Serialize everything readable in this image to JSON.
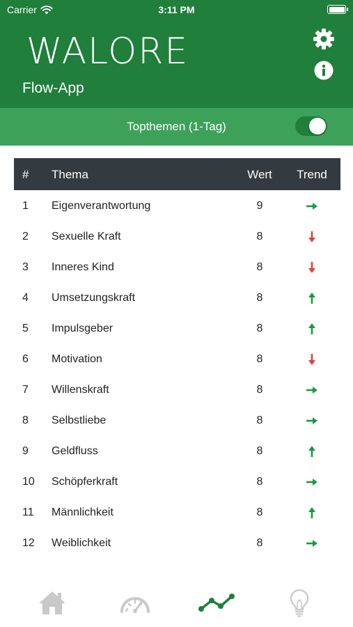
{
  "status_bar": {
    "carrier": "Carrier",
    "time": "3:11 PM"
  },
  "header": {
    "logo_text": "WALORE",
    "subtitle": "Flow-App"
  },
  "icons": {
    "settings": "gear-icon",
    "info": "info-icon"
  },
  "toggle": {
    "label": "Topthemen (1-Tag)",
    "on": true
  },
  "table": {
    "headers": {
      "number": "#",
      "theme": "Thema",
      "value": "Wert",
      "trend": "Trend"
    },
    "rows": [
      {
        "num": "1",
        "theme": "Eigenverantwortung",
        "value": "9",
        "trend": "right"
      },
      {
        "num": "2",
        "theme": "Sexuelle Kraft",
        "value": "8",
        "trend": "down"
      },
      {
        "num": "3",
        "theme": "Inneres Kind",
        "value": "8",
        "trend": "down"
      },
      {
        "num": "4",
        "theme": "Umsetzungskraft",
        "value": "8",
        "trend": "up"
      },
      {
        "num": "5",
        "theme": "Impulsgeber",
        "value": "8",
        "trend": "up"
      },
      {
        "num": "6",
        "theme": "Motivation",
        "value": "8",
        "trend": "down"
      },
      {
        "num": "7",
        "theme": "Willenskraft",
        "value": "8",
        "trend": "right"
      },
      {
        "num": "8",
        "theme": "Selbstliebe",
        "value": "8",
        "trend": "right"
      },
      {
        "num": "9",
        "theme": "Geldfluss",
        "value": "8",
        "trend": "up"
      },
      {
        "num": "10",
        "theme": "Schöpferkraft",
        "value": "8",
        "trend": "right"
      },
      {
        "num": "11",
        "theme": "Männlichkeit",
        "value": "8",
        "trend": "up"
      },
      {
        "num": "12",
        "theme": "Weiblichkeit",
        "value": "8",
        "trend": "right"
      }
    ]
  },
  "tabs": [
    {
      "icon": "home-icon",
      "active": false
    },
    {
      "icon": "gauge-icon",
      "active": false
    },
    {
      "icon": "trend-chart-icon",
      "active": true
    },
    {
      "icon": "lightbulb-icon",
      "active": false
    }
  ],
  "colors": {
    "header_green": "#1f7f3b",
    "toggle_bar_green": "#3ea15a",
    "table_header": "#333a40",
    "trend_green": "#1a9a3e",
    "trend_red": "#e0413a",
    "tab_inactive": "#c9c9c9",
    "tab_active": "#1f7f3b"
  }
}
